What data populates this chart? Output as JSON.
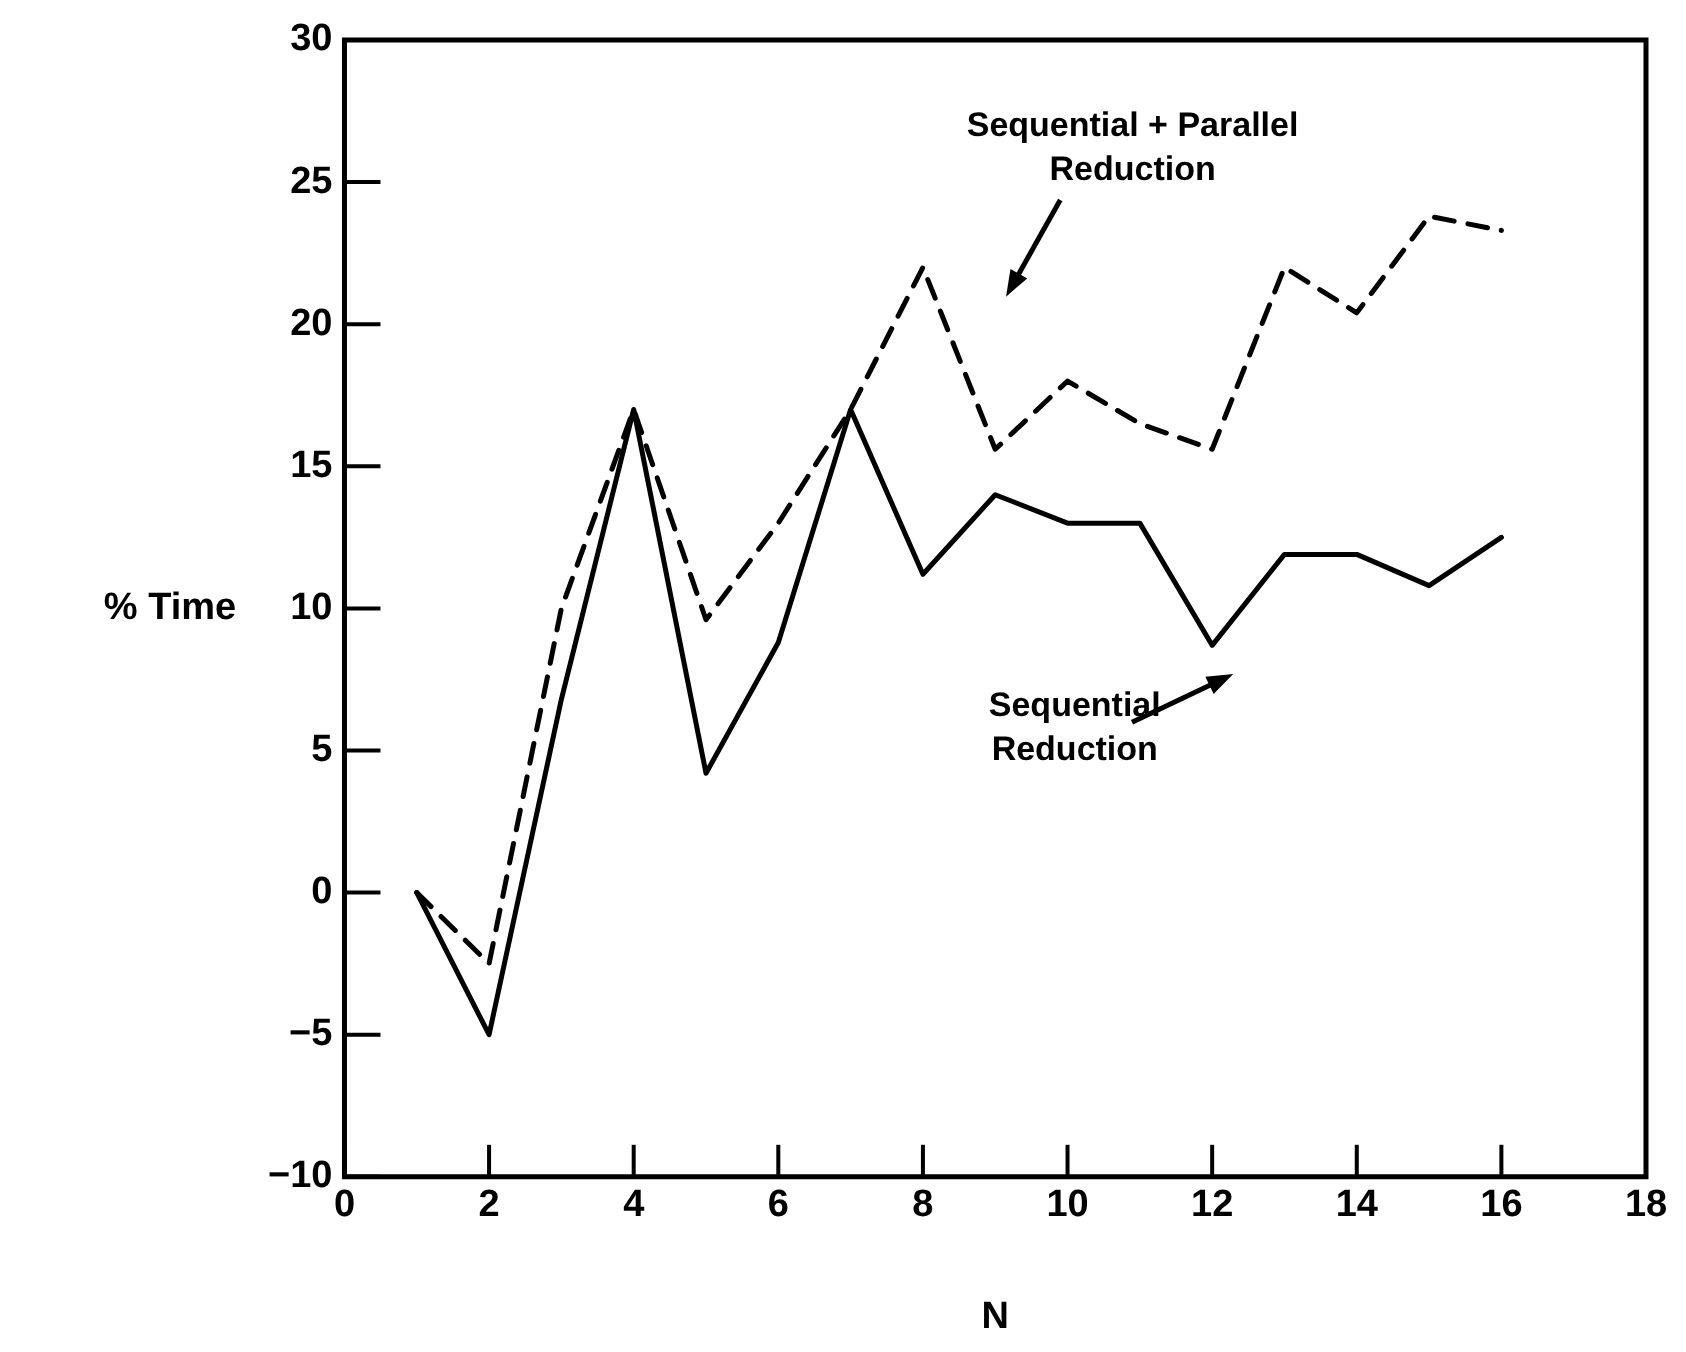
{
  "chart_data": {
    "type": "line",
    "xlabel": "N",
    "ylabel": "% Time",
    "x": [
      1,
      2,
      3,
      4,
      5,
      6,
      7,
      8,
      9,
      10,
      11,
      12,
      13,
      14,
      15,
      16
    ],
    "series": [
      {
        "name": "Sequential + Parallel Reduction",
        "color": "#000000",
        "line_style": "dashed",
        "values": [
          0,
          -2.5,
          10,
          17,
          9.6,
          13,
          17,
          22,
          15.6,
          18,
          16.5,
          15.6,
          22,
          20.4,
          23.8,
          23.3
        ]
      },
      {
        "name": "Sequential Reduction",
        "color": "#000000",
        "line_style": "solid",
        "values": [
          0,
          -5,
          6.8,
          17,
          4.2,
          8.8,
          17,
          11.2,
          14,
          13,
          13,
          8.7,
          11.9,
          11.9,
          10.8,
          12.5
        ]
      }
    ],
    "xlim": [
      0,
      18
    ],
    "xticks": [
      0,
      2,
      4,
      6,
      8,
      10,
      12,
      14,
      16,
      18
    ],
    "ylim": [
      -10,
      30
    ],
    "yticks": [
      -10,
      -5,
      0,
      5,
      10,
      15,
      20,
      25,
      30
    ],
    "grid": false,
    "legend": false,
    "marker": "none"
  }
}
